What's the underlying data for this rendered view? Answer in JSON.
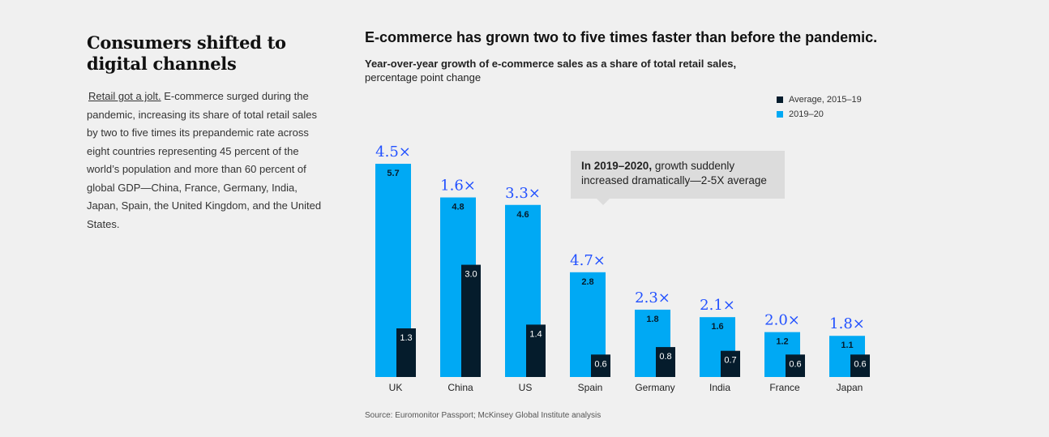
{
  "left": {
    "title": "Consumers shifted to digital channels",
    "lead": "Retail got a jolt.",
    "body": " E-commerce surged during the pandemic, increasing its share of total retail sales by two to five times its prepandemic rate across eight countries representing 45 percent of the world’s population and more than 60 percent of global GDP—China, France, Germany, India, Japan, Spain, the United Kingdom, and the United States."
  },
  "chart_title": "E-commerce has grown two to five times faster than before the pandemic.",
  "chart_subtitle_bold": "Year-over-year growth of e-commerce sales as a share of total retail sales,",
  "chart_subtitle_rest": "percentage point change",
  "callout": {
    "bold": "In 2019–2020,",
    "text": " growth suddenly increased dramatically—2-5X average"
  },
  "source": "Source: Euromonitor Passport; McKinsey Global Institute analysis",
  "colors": {
    "recent": "#00a9f4",
    "average": "#051c2c",
    "multiplier": "#2251ff",
    "background": "#f0f0f0"
  },
  "chart_data": {
    "type": "bar",
    "categories": [
      "UK",
      "China",
      "US",
      "Spain",
      "Germany",
      "India",
      "France",
      "Japan"
    ],
    "series": [
      {
        "name": "Average, 2015–19",
        "values": [
          1.3,
          3.0,
          1.4,
          0.6,
          0.8,
          0.7,
          0.6,
          0.6
        ]
      },
      {
        "name": "2019–20",
        "values": [
          5.7,
          4.8,
          4.6,
          2.8,
          1.8,
          1.6,
          1.2,
          1.1
        ]
      }
    ],
    "value_labels_recent": [
      "5.7",
      "4.8",
      "4.6",
      "2.8",
      "1.8",
      "1.6",
      "1.2",
      "1.1"
    ],
    "value_labels_average": [
      "1.3",
      "3.0",
      "1.4",
      "0.6",
      "0.8",
      "0.7",
      "0.6",
      "0.6"
    ],
    "multipliers": [
      "4.5×",
      "1.6×",
      "3.3×",
      "4.7×",
      "2.3×",
      "2.1×",
      "2.0×",
      "1.8×"
    ],
    "ylim": [
      0,
      5.7
    ],
    "grid": false,
    "legend_position": "top-right"
  }
}
